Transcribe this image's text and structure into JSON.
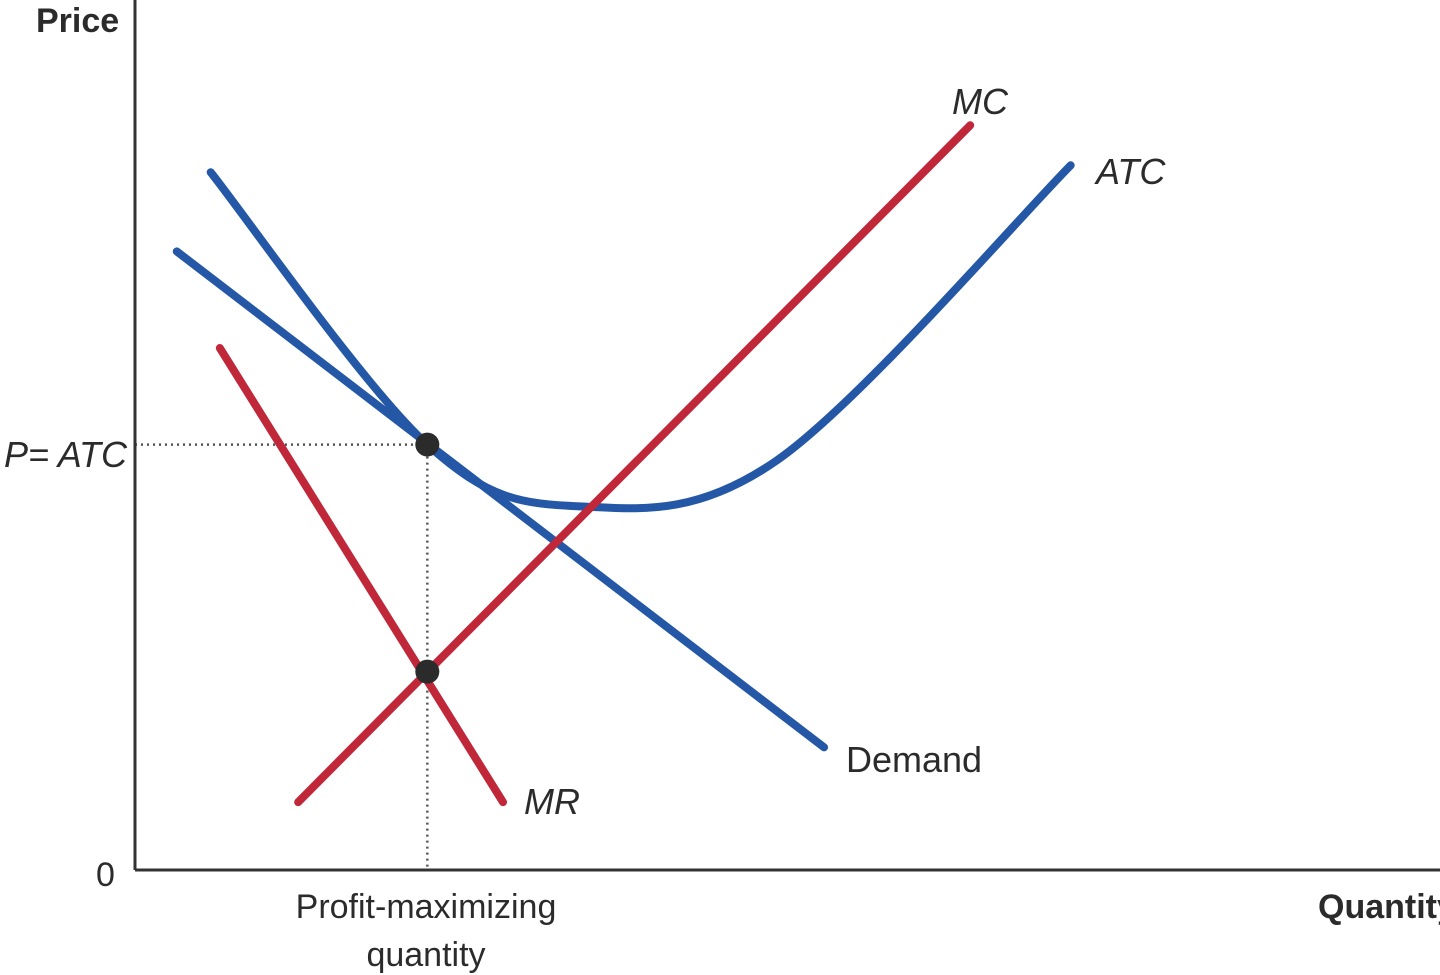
{
  "chart_data": {
    "type": "line",
    "title": "",
    "xlabel": "Quantity",
    "ylabel": "Price",
    "origin_label": "0",
    "xlim": [
      0,
      100
    ],
    "ylim": [
      0,
      100
    ],
    "grid": false,
    "legend": "none",
    "colors": {
      "cost": "#c0283a",
      "demand": "#2457a6",
      "axis": "#333333",
      "marker": "#2b2b2b",
      "guide": "#555555"
    },
    "series": [
      {
        "name": "Demand",
        "style": "straight",
        "color": "#2457a6",
        "points": [
          [
            3.2,
            71.1
          ],
          [
            52.8,
            14.1
          ]
        ]
      },
      {
        "name": "ATC",
        "style": "smooth",
        "color": "#2457a6",
        "points": [
          [
            5.8,
            80.2
          ],
          [
            22.4,
            48.9
          ],
          [
            34.1,
            41.8
          ],
          [
            49.2,
            47.1
          ],
          [
            71.7,
            81.0
          ]
        ]
      },
      {
        "name": "MC",
        "style": "straight",
        "color": "#c0283a",
        "points": [
          [
            12.5,
            7.8
          ],
          [
            64.0,
            85.6
          ]
        ]
      },
      {
        "name": "MR",
        "style": "straight",
        "color": "#c0283a",
        "points": [
          [
            6.5,
            60.0
          ],
          [
            28.2,
            7.8
          ]
        ]
      }
    ],
    "points": [
      {
        "id": "p-atc",
        "x": 22.4,
        "y": 48.9
      },
      {
        "id": "mc-mr",
        "x": 22.4,
        "y": 22.8
      }
    ],
    "annotations": {
      "price_tick": "P= ATC",
      "quantity_tick_line1": "Profit-maximizing",
      "quantity_tick_line2": "quantity"
    }
  }
}
